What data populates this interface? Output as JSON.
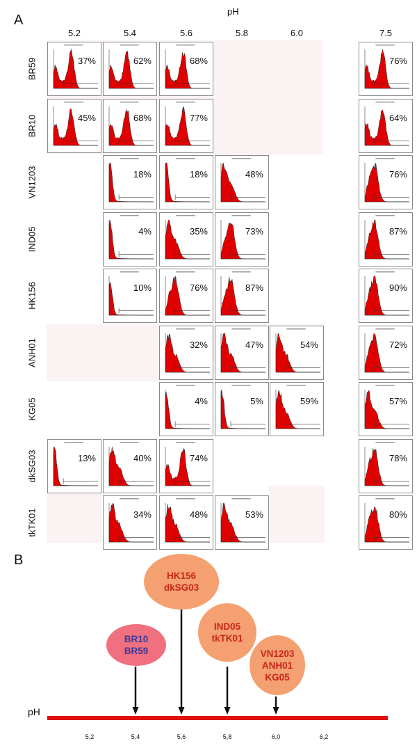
{
  "panel_a": {
    "label": "A",
    "axis_title": "pH",
    "columns": [
      "5.2",
      "5.4",
      "5.6",
      "5.8",
      "6.0",
      "7.5"
    ],
    "rows": [
      {
        "name": "BR59",
        "cells": [
          {
            "col": 0,
            "pct": "37%",
            "shape": "bi"
          },
          {
            "col": 1,
            "pct": "62%",
            "shape": "bi"
          },
          {
            "col": 2,
            "pct": "68%",
            "shape": "bi"
          },
          {
            "col": 5,
            "pct": "76%",
            "shape": "bi"
          }
        ]
      },
      {
        "name": "BR10",
        "cells": [
          {
            "col": 0,
            "pct": "45%",
            "shape": "bi"
          },
          {
            "col": 1,
            "pct": "68%",
            "shape": "bi"
          },
          {
            "col": 2,
            "pct": "77%",
            "shape": "bi"
          },
          {
            "col": 5,
            "pct": "64%",
            "shape": "bi"
          }
        ]
      },
      {
        "name": "VN1203",
        "cells": [
          {
            "col": 1,
            "pct": "18%",
            "shape": "low"
          },
          {
            "col": 2,
            "pct": "18%",
            "shape": "low"
          },
          {
            "col": 3,
            "pct": "48%",
            "shape": "mid"
          },
          {
            "col": 5,
            "pct": "76%",
            "shape": "high"
          }
        ]
      },
      {
        "name": "IND05",
        "cells": [
          {
            "col": 1,
            "pct": "4%",
            "shape": "low"
          },
          {
            "col": 2,
            "pct": "35%",
            "shape": "mid"
          },
          {
            "col": 3,
            "pct": "73%",
            "shape": "high"
          },
          {
            "col": 5,
            "pct": "87%",
            "shape": "high"
          }
        ]
      },
      {
        "name": "HK156",
        "cells": [
          {
            "col": 1,
            "pct": "10%",
            "shape": "low"
          },
          {
            "col": 2,
            "pct": "76%",
            "shape": "high"
          },
          {
            "col": 3,
            "pct": "87%",
            "shape": "high"
          },
          {
            "col": 5,
            "pct": "90%",
            "shape": "high"
          }
        ]
      },
      {
        "name": "ANH01",
        "cells": [
          {
            "col": 2,
            "pct": "32%",
            "shape": "mid"
          },
          {
            "col": 3,
            "pct": "47%",
            "shape": "mid"
          },
          {
            "col": 4,
            "pct": "54%",
            "shape": "mid"
          },
          {
            "col": 5,
            "pct": "72%",
            "shape": "high"
          }
        ]
      },
      {
        "name": "KG05",
        "cells": [
          {
            "col": 2,
            "pct": "4%",
            "shape": "low"
          },
          {
            "col": 3,
            "pct": "5%",
            "shape": "low"
          },
          {
            "col": 4,
            "pct": "59%",
            "shape": "mid"
          },
          {
            "col": 5,
            "pct": "57%",
            "shape": "mid"
          }
        ]
      },
      {
        "name": "dkSG03",
        "cells": [
          {
            "col": 0,
            "pct": "13%",
            "shape": "low"
          },
          {
            "col": 1,
            "pct": "40%",
            "shape": "mid"
          },
          {
            "col": 2,
            "pct": "74%",
            "shape": "bi"
          },
          {
            "col": 5,
            "pct": "78%",
            "shape": "high"
          }
        ]
      },
      {
        "name": "tkTK01",
        "cells": [
          {
            "col": 1,
            "pct": "34%",
            "shape": "mid"
          },
          {
            "col": 2,
            "pct": "48%",
            "shape": "mid"
          },
          {
            "col": 3,
            "pct": "53%",
            "shape": "mid"
          },
          {
            "col": 5,
            "pct": "80%",
            "shape": "high"
          }
        ]
      }
    ]
  },
  "panel_b": {
    "label": "B",
    "axis_label": "pH",
    "ticks": [
      "5,2",
      "5,4",
      "5,6",
      "5,8",
      "6,0",
      "6,2"
    ],
    "bubbles": [
      {
        "ph": "5,4",
        "lines": [
          "BR10",
          "BR59"
        ],
        "fill": "#f07080",
        "text_color": "#3a3a9a"
      },
      {
        "ph": "5,6",
        "lines": [
          "HK156",
          "dkSG03"
        ],
        "fill": "#f4a070",
        "text_color": "#c8261a"
      },
      {
        "ph": "5,8",
        "lines": [
          "IND05",
          "tkTK01"
        ],
        "fill": "#f4a070",
        "text_color": "#c8261a"
      },
      {
        "ph": "6,0",
        "lines": [
          "VN1203",
          "ANH01",
          "KG05"
        ],
        "fill": "#f4a070",
        "text_color": "#c8261a"
      }
    ],
    "axis_color": "#e01010"
  },
  "colors": {
    "histogram_fill": "#e00000",
    "background_band": "#fbf3f3"
  }
}
